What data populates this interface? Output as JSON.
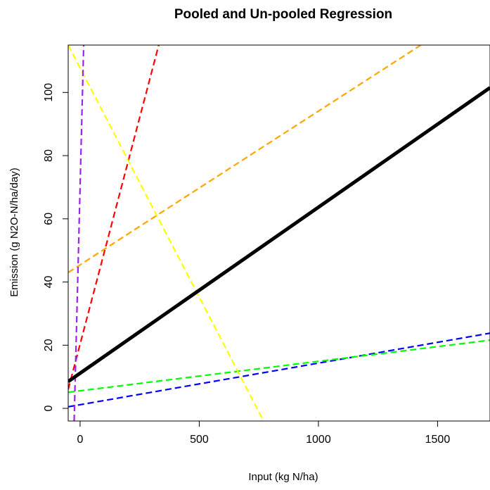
{
  "chart_data": {
    "type": "line",
    "title": "Pooled and Un-pooled Regression",
    "xlabel": "Input (kg N/ha)",
    "ylabel": "Emission (g N2O-N/ha/day)",
    "xlim": [
      -50,
      1720
    ],
    "ylim": [
      -4,
      115
    ],
    "xticks": [
      0,
      500,
      1000,
      1500
    ],
    "yticks": [
      0,
      20,
      40,
      60,
      80,
      100
    ],
    "grid": false,
    "legend": "none",
    "series": [
      {
        "color": "#000000",
        "style": "solid",
        "x": [
          -50,
          1720
        ],
        "y": [
          8.5,
          101.5
        ]
      },
      {
        "color": "#ff0000",
        "style": "dashed",
        "x": [
          -50,
          330
        ],
        "y": [
          6,
          115
        ]
      },
      {
        "color": "#ffa500",
        "style": "dashed",
        "x": [
          -50,
          1430
        ],
        "y": [
          43,
          115
        ]
      },
      {
        "color": "#ffff00",
        "style": "dashed",
        "x": [
          -50,
          770
        ],
        "y": [
          115,
          -4
        ]
      },
      {
        "color": "#a020f0",
        "style": "dashed",
        "x": [
          -25,
          15
        ],
        "y": [
          -4,
          115
        ]
      },
      {
        "color": "#0000ff",
        "style": "dashed",
        "x": [
          -50,
          1720
        ],
        "y": [
          0.5,
          23.8
        ]
      },
      {
        "color": "#00ff00",
        "style": "dashed",
        "x": [
          -50,
          1720
        ],
        "y": [
          5.1,
          21.6
        ]
      }
    ]
  }
}
